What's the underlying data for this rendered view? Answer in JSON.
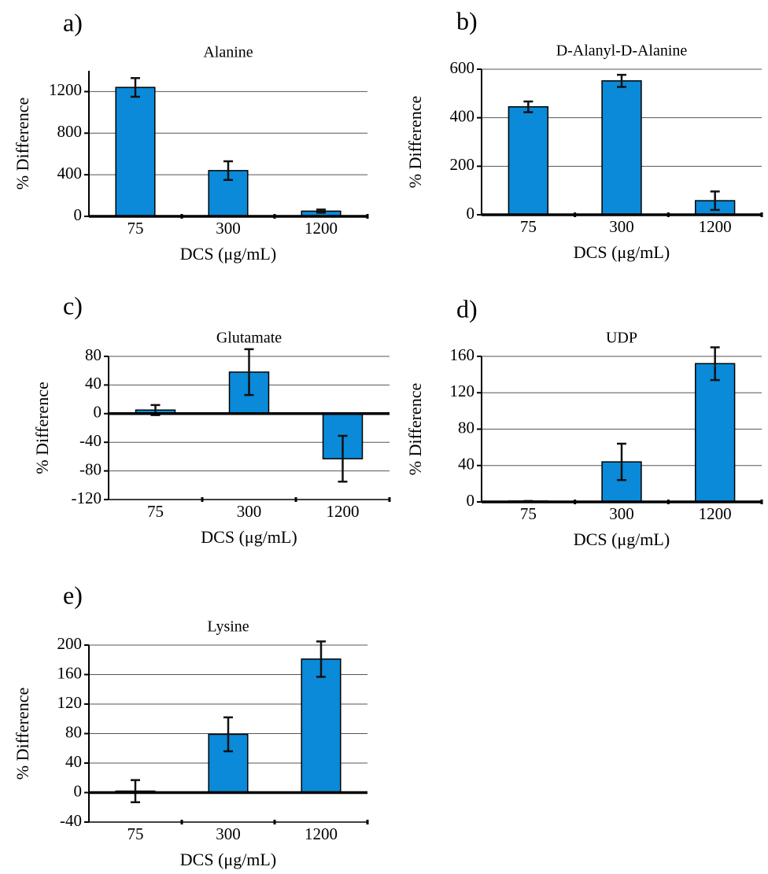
{
  "chart_data": [
    {
      "type": "bar",
      "panel": "a)",
      "title": "Alanine",
      "xlabel": "DCS (μg/mL)",
      "ylabel": "% Difference",
      "categories": [
        "75",
        "300",
        "1200"
      ],
      "values": [
        1240,
        440,
        50
      ],
      "errors": [
        90,
        90,
        15
      ],
      "color": "#0a8ad8",
      "ylim": [
        0,
        1400
      ],
      "yticks": [
        0,
        400,
        800,
        1200
      ],
      "grid": true
    },
    {
      "type": "bar",
      "panel": "b)",
      "title": "D-Alanyl-D-Alanine",
      "xlabel": "DCS (μg/mL)",
      "ylabel": "% Difference",
      "categories": [
        "75",
        "300",
        "1200"
      ],
      "values": [
        445,
        552,
        58
      ],
      "errors": [
        22,
        25,
        38
      ],
      "color": "#0a8ad8",
      "ylim": [
        0,
        600
      ],
      "yticks": [
        0,
        200,
        400,
        600
      ],
      "grid": true
    },
    {
      "type": "bar",
      "panel": "c)",
      "title": "Glutamate",
      "xlabel": "DCS (μg/mL)",
      "ylabel": "% Difference",
      "categories": [
        "75",
        "300",
        "1200"
      ],
      "values": [
        5,
        58,
        -63
      ],
      "errors": [
        7,
        32,
        32
      ],
      "color": "#0a8ad8",
      "ylim": [
        -120,
        80
      ],
      "yticks": [
        -120,
        -80,
        -40,
        0,
        40,
        80
      ],
      "grid": true
    },
    {
      "type": "bar",
      "panel": "d)",
      "title": "UDP",
      "xlabel": "DCS (μg/mL)",
      "ylabel": "% Difference",
      "categories": [
        "75",
        "300",
        "1200"
      ],
      "values": [
        1,
        44,
        152
      ],
      "errors": [
        0,
        20,
        18
      ],
      "color": "#0a8ad8",
      "ylim": [
        0,
        160
      ],
      "yticks": [
        0,
        40,
        80,
        120,
        160
      ],
      "grid": true
    },
    {
      "type": "bar",
      "panel": "e)",
      "title": "Lysine",
      "xlabel": "DCS (μg/mL)",
      "ylabel": "% Difference",
      "categories": [
        "75",
        "300",
        "1200"
      ],
      "values": [
        2,
        79,
        181
      ],
      "errors": [
        15,
        23,
        24
      ],
      "color": "#0a8ad8",
      "ylim": [
        -40,
        200
      ],
      "yticks": [
        -40,
        0,
        40,
        80,
        120,
        160,
        200
      ],
      "grid": true
    }
  ]
}
